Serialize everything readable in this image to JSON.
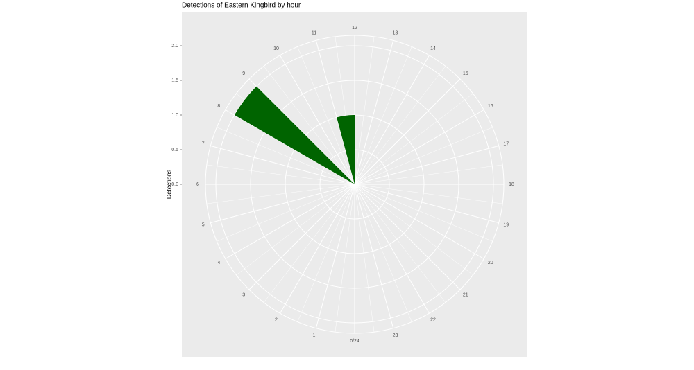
{
  "chart_data": {
    "type": "polar-bar",
    "title": "Detections of Eastern Kingbird by hour",
    "y_label": "Detections",
    "categories": [
      "0/24",
      "1",
      "2",
      "3",
      "4",
      "5",
      "6",
      "7",
      "8",
      "9",
      "10",
      "11",
      "12",
      "13",
      "14",
      "15",
      "16",
      "17",
      "18",
      "19",
      "20",
      "21",
      "22",
      "23"
    ],
    "values": [
      0,
      0,
      0,
      0,
      0,
      0,
      0,
      0,
      2,
      0,
      0,
      1,
      0,
      0,
      0,
      0,
      0,
      0,
      0,
      0,
      0,
      0,
      0,
      0
    ],
    "color": "#006400",
    "ylim": [
      0,
      2.15
    ],
    "yticks": [
      {
        "value": 0,
        "label": "0.0"
      },
      {
        "value": 0.5,
        "label": "0.5"
      },
      {
        "value": 1,
        "label": "1.0"
      },
      {
        "value": 1.5,
        "label": "1.5"
      },
      {
        "value": 2,
        "label": "2.0"
      }
    ],
    "grid": true
  }
}
